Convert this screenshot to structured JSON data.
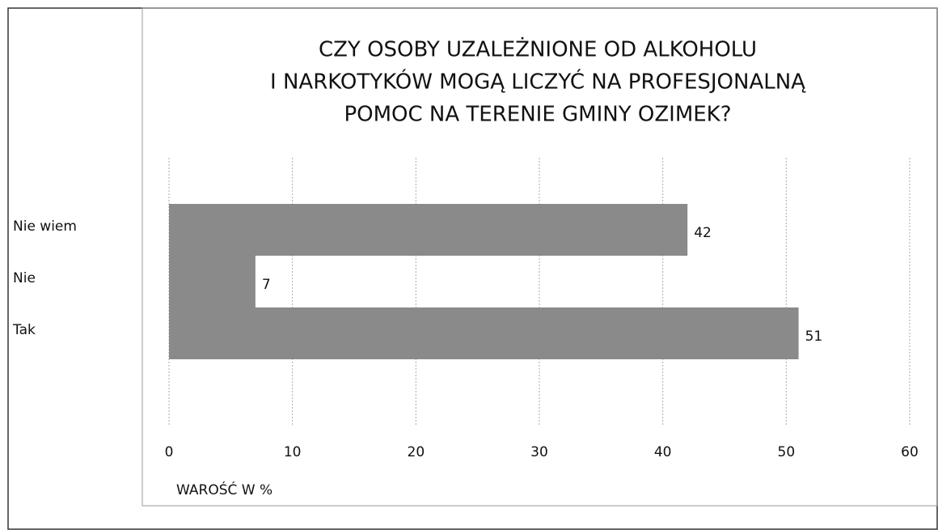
{
  "chart_data": {
    "type": "barh",
    "title": [
      "CZY OSOBY UZALEŻNIONE OD ALKOHOLU",
      "I NARKOTYKÓW MOGĄ LICZYĆ NA PROFESJONALNĄ",
      "POMOC NA TERENIE GMINY OZIMEK?"
    ],
    "x_label": "WAROŚĆ W %",
    "categories": [
      "Nie wiem",
      "Nie",
      "Tak"
    ],
    "values": [
      42,
      7,
      51
    ],
    "color": "#8a8a8a",
    "xlim": [
      0,
      60
    ],
    "xticks": [
      0,
      10,
      20,
      30,
      40,
      50,
      60
    ],
    "grid": true
  }
}
